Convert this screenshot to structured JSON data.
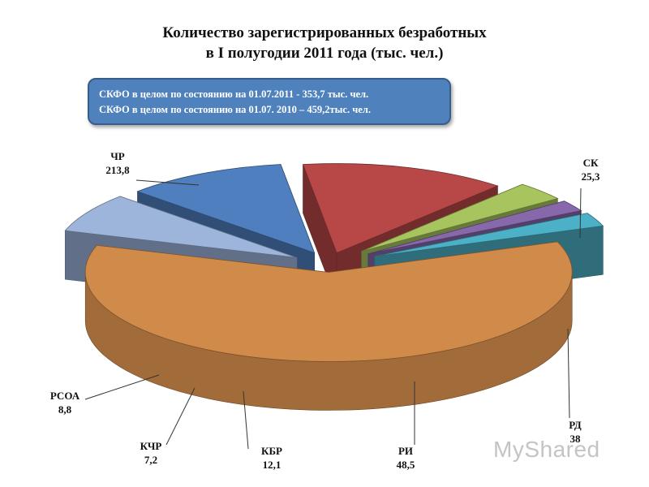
{
  "title_line1": "Количество зарегистрированных безработных",
  "title_line2": "в I полугодии 2011 года (тыс. чел.)",
  "info": {
    "line1": "СКФО в целом  по состоянию на 01.07.2011 -  353,7 тыс. чел.",
    "line2": "СКФО в целом  по состоянию на 01.07. 2010 – 459,2тыс. чел."
  },
  "watermark": "MyShared",
  "chart_data": {
    "type": "pie",
    "style": "3d-exploded",
    "categories": [
      "ЧР",
      "СК",
      "РД",
      "РИ",
      "КБР",
      "КЧР",
      "РСОА"
    ],
    "values": [
      213.8,
      25.3,
      38,
      48.5,
      12.1,
      7.2,
      8.8
    ],
    "value_labels": [
      "213,8",
      "25,3",
      "38",
      "48,5",
      "12,1",
      "7,2",
      "8,8"
    ],
    "colors": [
      "#d08a4a",
      "#9db4db",
      "#4f7fbf",
      "#b84747",
      "#a7c45e",
      "#8668ab",
      "#4cb0c6"
    ]
  }
}
